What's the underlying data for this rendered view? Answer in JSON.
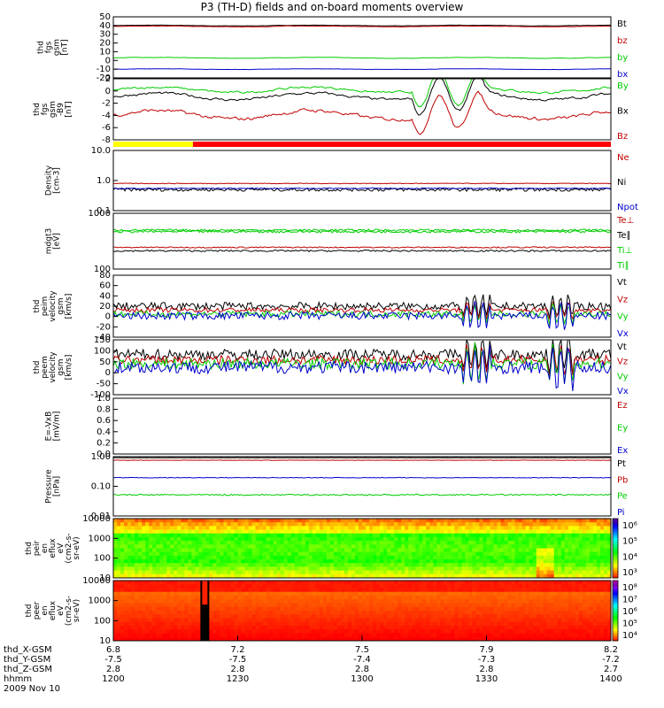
{
  "title": "P3 (TH-D) fields and on-board moments overview",
  "chart_data": {
    "type": "line",
    "panels": [
      {
        "id": "fgs_gsm",
        "ylabel": [
          "thd",
          "fgs",
          "gsm",
          "[nT]"
        ],
        "ylim": [
          -20,
          50
        ],
        "ticks": [
          "50",
          "40",
          "30",
          "20",
          "10",
          "0",
          "-10",
          "-20"
        ],
        "series": [
          {
            "name": "Bt",
            "color": "#000000",
            "base": 40,
            "noise": 0.4
          },
          {
            "name": "bz",
            "color": "#c00000",
            "base": 39,
            "noise": 0.5
          },
          {
            "name": "by",
            "color": "#00cc00",
            "base": 3,
            "noise": 0.5
          },
          {
            "name": "bx",
            "color": "#0000cc",
            "base": -10,
            "noise": 0.4
          }
        ]
      },
      {
        "id": "fgs_gse",
        "ylabel": [
          "thd",
          "fgs",
          "gsm",
          "-B9",
          "[nT]"
        ],
        "ylim": [
          -9,
          2
        ],
        "ticks": [
          "2",
          "0",
          "-2",
          "-4",
          "-6",
          "-8"
        ],
        "series": [
          {
            "name": "By",
            "color": "#00cc00",
            "base": 0,
            "noise": 0.5
          },
          {
            "name": "Bx",
            "color": "#000000",
            "base": -1.2,
            "noise": 0.6
          },
          {
            "name": "Bz",
            "color": "#c00000",
            "base": -4.5,
            "noise": 0.8
          }
        ]
      },
      {
        "id": "density",
        "ylabel": [
          "Density",
          "[cm-3]"
        ],
        "log": true,
        "ylim": [
          0.1,
          10
        ],
        "ticks": [
          "10.0",
          "1.0",
          "0.1"
        ],
        "series": [
          {
            "name": "Ne",
            "color": "#c00000",
            "base": 0.8,
            "noise": 0.02
          },
          {
            "name": "Ni",
            "color": "#000000",
            "base": 0.5,
            "noise": 0.06
          },
          {
            "name": "Npot",
            "color": "#0000cc",
            "base": 0.55,
            "noise": 0.02
          }
        ]
      },
      {
        "id": "temperature",
        "ylabel": [
          "mdgt3",
          "[eV]"
        ],
        "log": true,
        "ylim": [
          100,
          10000
        ],
        "ticks": [
          "1000",
          "100"
        ],
        "series": [
          {
            "name": "Te⊥",
            "color": "#c00000",
            "base": 600,
            "noise": 30
          },
          {
            "name": "Te∥",
            "color": "#000000",
            "base": 450,
            "noise": 30
          },
          {
            "name": "Ti⊥",
            "color": "#00cc00",
            "base": 2500,
            "noise": 200
          },
          {
            "name": "Ti∥",
            "color": "#00cc00",
            "base": 2200,
            "noise": 200
          }
        ]
      },
      {
        "id": "peim_velocity",
        "ylabel": [
          "thd",
          "peim",
          "velocity",
          "gsm",
          "[km/s]"
        ],
        "ylim": [
          -60,
          100
        ],
        "ticks": [
          "80",
          "60",
          "40",
          "20",
          "0",
          "-20",
          "-40"
        ],
        "series": [
          {
            "name": "Vt",
            "color": "#000000",
            "base": 20,
            "noise": 10
          },
          {
            "name": "Vz",
            "color": "#c00000",
            "base": 10,
            "noise": 6
          },
          {
            "name": "Vy",
            "color": "#00cc00",
            "base": 0,
            "noise": 8
          },
          {
            "name": "Vx",
            "color": "#0000cc",
            "base": -5,
            "noise": 10
          }
        ]
      },
      {
        "id": "peem_velocity",
        "ylabel": [
          "thd",
          "peem",
          "velocity",
          "gsm",
          "[km/s]"
        ],
        "ylim": [
          -150,
          150
        ],
        "ticks": [
          "150",
          "100",
          "50",
          "0",
          "-50",
          "-100"
        ],
        "series": [
          {
            "name": "Vt",
            "color": "#000000",
            "base": 70,
            "noise": 30
          },
          {
            "name": "Vz",
            "color": "#c00000",
            "base": 40,
            "noise": 25
          },
          {
            "name": "Vy",
            "color": "#00cc00",
            "base": 20,
            "noise": 30
          },
          {
            "name": "Vx",
            "color": "#0000cc",
            "base": 0,
            "noise": 35
          }
        ]
      },
      {
        "id": "efield",
        "ylabel": [
          "E=-VxB",
          "[mV/m]"
        ],
        "ylim": [
          0,
          1
        ],
        "ticks": [
          "1.0",
          "0.8",
          "0.6",
          "0.4",
          "0.2",
          "0.0"
        ],
        "series": [
          {
            "name": "Ez",
            "color": "#c00000"
          },
          {
            "name": "Ey",
            "color": "#00cc00"
          },
          {
            "name": "Ex",
            "color": "#0000cc"
          }
        ]
      },
      {
        "id": "pressure",
        "ylabel": [
          "Pressure",
          "[nPa]"
        ],
        "log": true,
        "ylim": [
          0.01,
          1.2
        ],
        "ticks": [
          "1.00",
          "0.10",
          "0.01"
        ],
        "series": [
          {
            "name": "Pt",
            "color": "#000000",
            "base": 1.1,
            "noise": 0.01
          },
          {
            "name": "Pb",
            "color": "#c00000",
            "base": 0.9,
            "noise": 0.01
          },
          {
            "name": "Pe",
            "color": "#00cc00",
            "base": 0.055,
            "noise": 0.003
          },
          {
            "name": "Pi",
            "color": "#0000cc",
            "base": 0.22,
            "noise": 0.005
          }
        ]
      },
      {
        "id": "peir_spec",
        "ylabel": [
          "thd",
          "peir",
          "en",
          "eflux",
          "eV",
          "(cm2-s-",
          "sr-eV)"
        ],
        "log": true,
        "ylim": [
          10,
          20000
        ],
        "ticks": [
          "10000",
          "1000",
          "100",
          "10"
        ],
        "colorbar_ticks": [
          "10⁶",
          "10⁵",
          "10⁴",
          "10³"
        ]
      },
      {
        "id": "peer_spec",
        "ylabel": [
          "thd",
          "peer",
          "en",
          "eflux",
          "eV",
          "(cm2-s-",
          "sr-eV)"
        ],
        "log": true,
        "ylim": [
          10,
          20000
        ],
        "ticks": [
          "10000",
          "1000",
          "100",
          "10"
        ],
        "colorbar_ticks": [
          "10⁸",
          "10⁷",
          "10⁶",
          "10⁵",
          "10⁴"
        ]
      }
    ],
    "x_ticks": [
      "1200",
      "1230",
      "1300",
      "1330",
      "1400"
    ],
    "ephemeris": [
      {
        "label": "thd_X-GSM",
        "values": [
          "6.8",
          "7.2",
          "7.5",
          "7.9",
          "8.2"
        ]
      },
      {
        "label": "thd_Y-GSM",
        "values": [
          "-7.5",
          "-7.5",
          "-7.4",
          "-7.3",
          "-7.2"
        ]
      },
      {
        "label": "thd_Z-GSM",
        "values": [
          "2.8",
          "2.8",
          "2.8",
          "2.8",
          "2.7"
        ]
      },
      {
        "label": "hhmm",
        "values": [
          "1200",
          "1230",
          "1300",
          "1330",
          "1400"
        ]
      }
    ],
    "date": "2009 Nov 10",
    "mode_bar": [
      {
        "color": "#ffff00",
        "start": 0,
        "end": 0.16
      },
      {
        "color": "#ff0000",
        "start": 0.16,
        "end": 1
      }
    ]
  }
}
